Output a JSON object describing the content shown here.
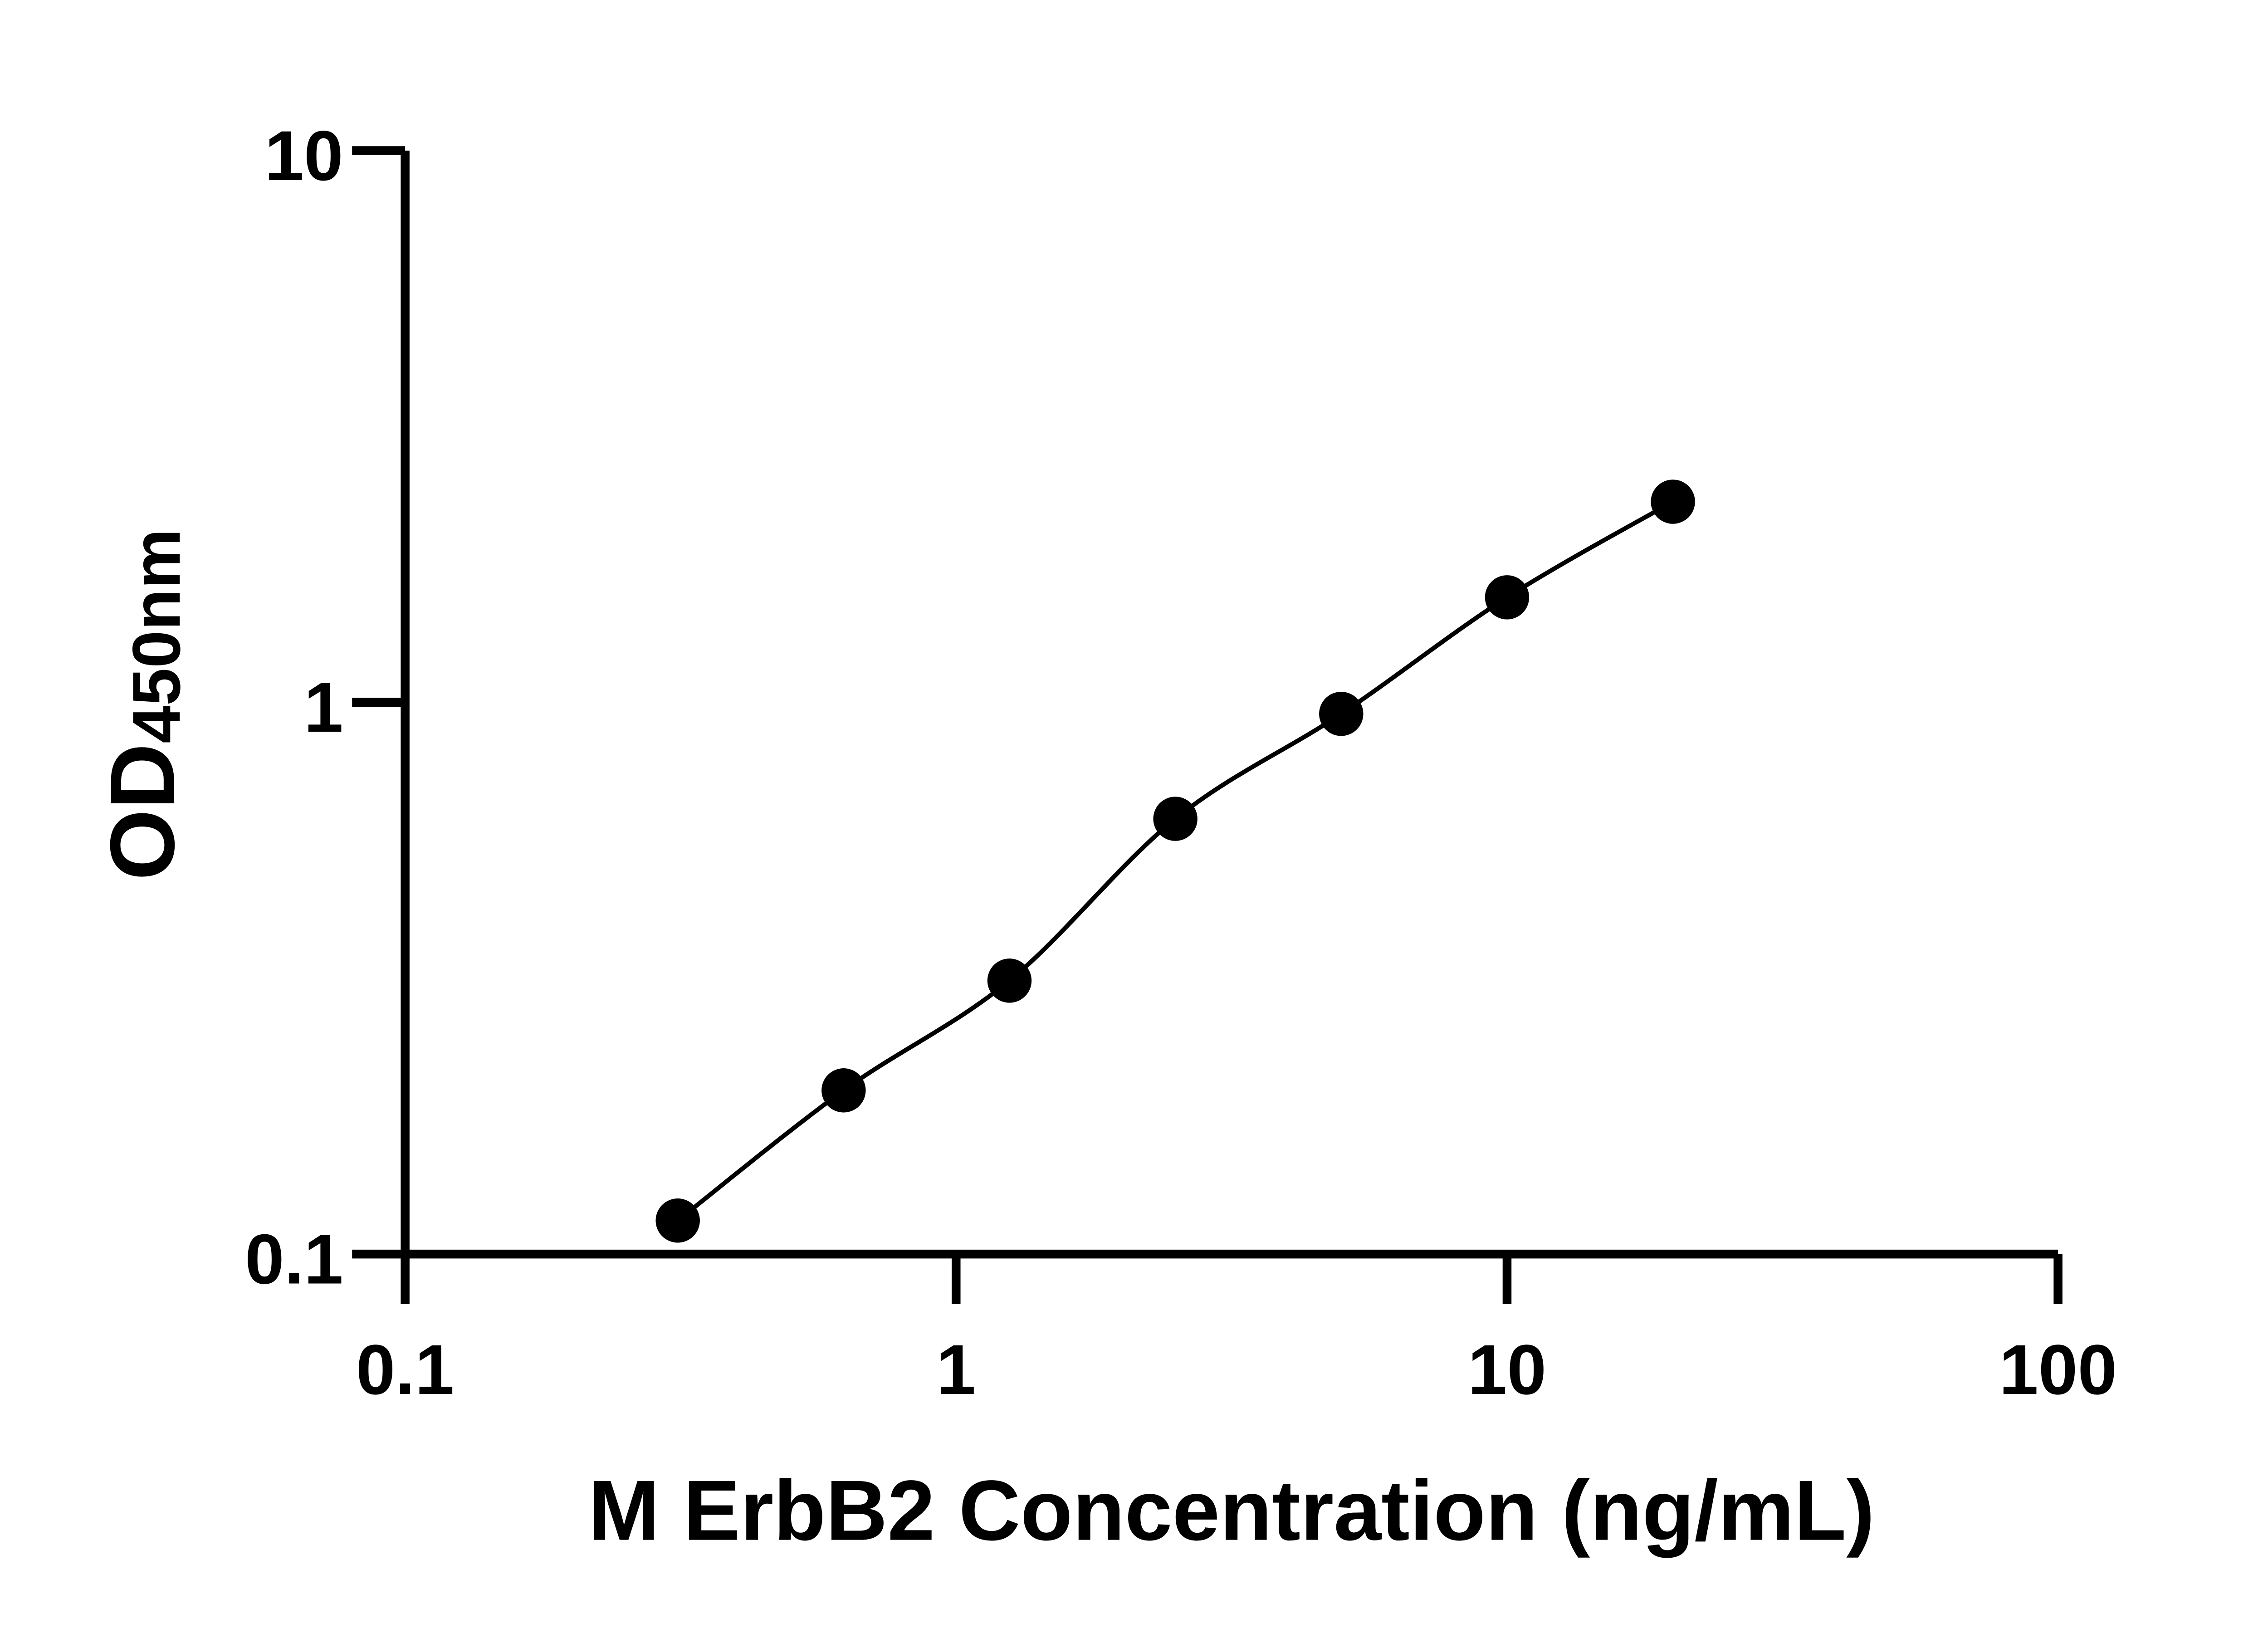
{
  "chart_data": {
    "type": "scatter",
    "title": "",
    "xlabel": "M ErbB2 Concentration (ng/mL)",
    "ylabel_main": "OD",
    "ylabel_sub": "450nm",
    "x_scale": "log",
    "y_scale": "log",
    "xlim": [
      0.1,
      100
    ],
    "ylim": [
      0.1,
      10
    ],
    "x_ticks": [
      "0.1",
      "1",
      "10",
      "100"
    ],
    "y_ticks": [
      "0.1",
      "1",
      "10"
    ],
    "grid": false,
    "fit_line": true,
    "color": "#000000",
    "series": [
      {
        "x": [
          0.3125,
          0.625,
          1.25,
          2.5,
          5,
          10,
          20
        ],
        "y": [
          0.115,
          0.198,
          0.313,
          0.615,
          0.953,
          1.55,
          2.31
        ]
      }
    ]
  }
}
